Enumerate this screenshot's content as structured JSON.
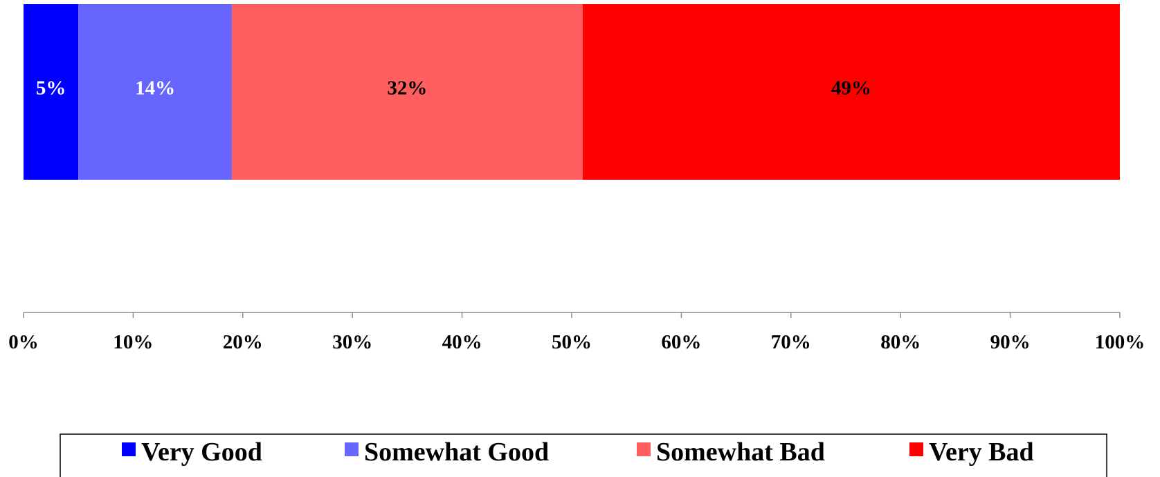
{
  "chart_data": {
    "type": "bar",
    "orientation": "horizontal",
    "stacked": true,
    "categories": [
      ""
    ],
    "series": [
      {
        "name": "Very Good",
        "values": [
          5
        ],
        "label": "5%",
        "color": "#0000ff",
        "label_color": "#ffffff"
      },
      {
        "name": "Somewhat Good",
        "values": [
          14
        ],
        "label": "14%",
        "color": "#6666ff",
        "label_color": "#ffffff"
      },
      {
        "name": "Somewhat Bad",
        "values": [
          32
        ],
        "label": "32%",
        "color": "#ff5f5f",
        "label_color": "#000000"
      },
      {
        "name": "Very Bad",
        "values": [
          49
        ],
        "label": "49%",
        "color": "#ff0000",
        "label_color": "#000000"
      }
    ],
    "xlim": [
      0,
      100
    ],
    "x_ticks": [
      0,
      10,
      20,
      30,
      40,
      50,
      60,
      70,
      80,
      90,
      100
    ],
    "x_tick_labels": [
      "0%",
      "10%",
      "20%",
      "30%",
      "40%",
      "50%",
      "60%",
      "70%",
      "80%",
      "90%",
      "100%"
    ],
    "grid": false,
    "legend_position": "bottom"
  }
}
